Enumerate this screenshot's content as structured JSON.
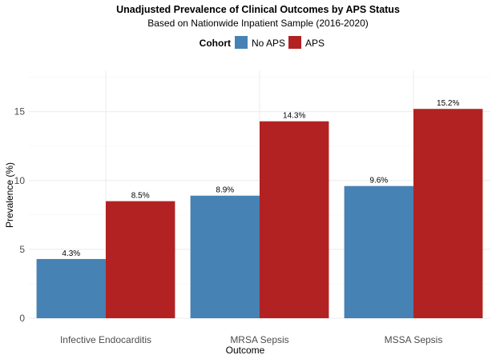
{
  "chart_data": {
    "type": "bar",
    "title": "Unadjusted Prevalence of Clinical Outcomes by APS Status",
    "subtitle": "Based on Nationwide Inpatient Sample (2016-2020)",
    "xlabel": "Outcome",
    "ylabel": "Prevalence (%)",
    "ylim": [
      0,
      18
    ],
    "yticks": [
      0,
      5,
      10,
      15
    ],
    "grid": true,
    "legend": {
      "title": "Cohort",
      "position": "top"
    },
    "categories": [
      "Infective Endocarditis",
      "MRSA Sepsis",
      "MSSA Sepsis"
    ],
    "series": [
      {
        "name": "No APS",
        "color": "#4682b4",
        "values": [
          4.3,
          8.9,
          9.6
        ],
        "labels": [
          "4.3%",
          "8.9%",
          "9.6%"
        ]
      },
      {
        "name": "APS",
        "color": "#b22222",
        "values": [
          8.5,
          14.3,
          15.2
        ],
        "labels": [
          "8.5%",
          "14.3%",
          "15.2%"
        ]
      }
    ]
  }
}
